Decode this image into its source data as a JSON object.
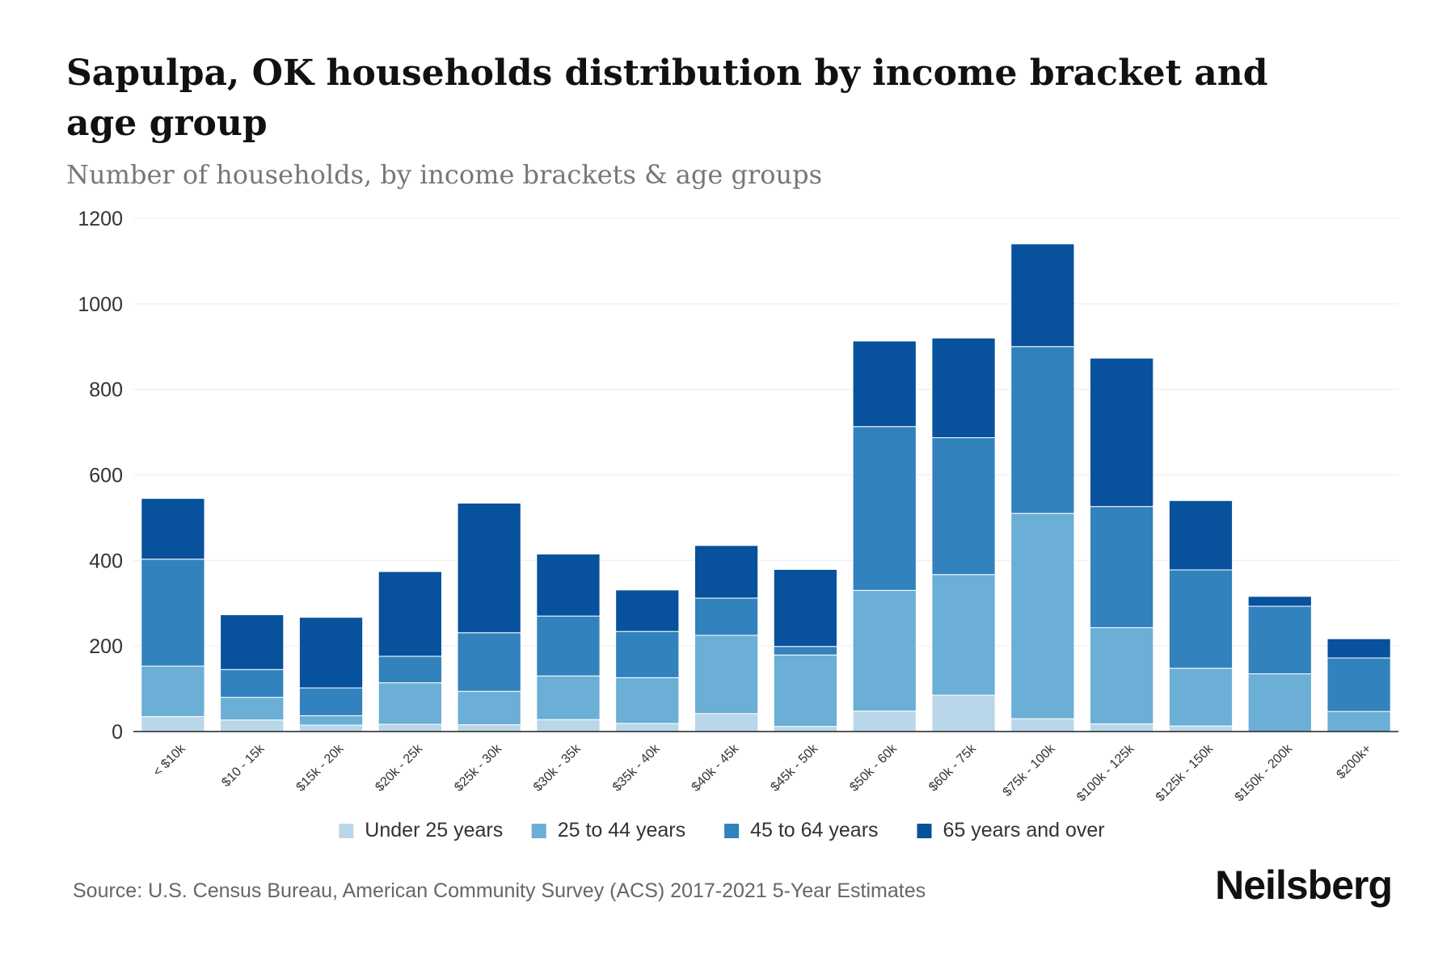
{
  "header": {
    "title": "Sapulpa, OK households distribution by income bracket and age group",
    "subtitle": "Number of households, by income brackets & age groups"
  },
  "footer": {
    "source": "Source: U.S. Census Bureau, American Community Survey (ACS) 2017-2021 5-Year Estimates",
    "brand": "Neilsberg"
  },
  "chart_data": {
    "type": "bar",
    "stacked": true,
    "title": "Sapulpa, OK households distribution by income bracket and age group",
    "subtitle": "Number of households, by income brackets & age groups",
    "xlabel": "",
    "ylabel": "",
    "ylim": [
      0,
      1200
    ],
    "yticks": [
      0,
      200,
      400,
      600,
      800,
      1000,
      1200
    ],
    "grid": true,
    "legend_position": "bottom",
    "categories": [
      "< $10k",
      "$10 - 15k",
      "$15k - 20k",
      "$20k - 25k",
      "$25k - 30k",
      "$30k - 35k",
      "$35k - 40k",
      "$40k - 45k",
      "$45k - 50k",
      "$50k - 60k",
      "$60k - 75k",
      "$75k - 100k",
      "$100k - 125k",
      "$125k - 150k",
      "$150k - 200k",
      "$200k+"
    ],
    "series": [
      {
        "name": "Under 25 years",
        "color": "#b9d7e8",
        "values": [
          35,
          27,
          15,
          17,
          16,
          28,
          19,
          42,
          12,
          48,
          85,
          30,
          18,
          13,
          0,
          0
        ]
      },
      {
        "name": "25 to 44 years",
        "color": "#6baed6",
        "values": [
          118,
          53,
          22,
          97,
          78,
          102,
          107,
          183,
          167,
          282,
          282,
          480,
          225,
          135,
          135,
          47
        ]
      },
      {
        "name": "45 to 64 years",
        "color": "#3182bd",
        "values": [
          250,
          65,
          65,
          62,
          137,
          140,
          108,
          87,
          20,
          383,
          320,
          390,
          283,
          230,
          158,
          125
        ]
      },
      {
        "name": "65 years and over",
        "color": "#08519c",
        "values": [
          142,
          128,
          165,
          198,
          303,
          145,
          97,
          123,
          180,
          200,
          233,
          240,
          347,
          162,
          23,
          45
        ]
      }
    ]
  }
}
